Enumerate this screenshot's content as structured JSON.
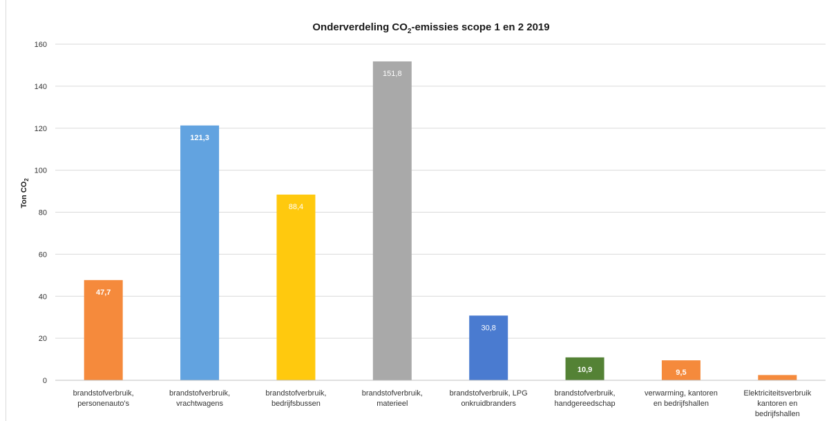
{
  "chart_data": {
    "type": "bar",
    "title": {
      "prefix": "Onderverdeling CO",
      "subscript": "2",
      "suffix": "-emissies scope 1 en 2 2019"
    },
    "ylabel": {
      "prefix": "Ton CO",
      "subscript": "2"
    },
    "xlabel": "",
    "ylim": [
      0,
      160
    ],
    "yticks": [
      "0",
      "20",
      "40",
      "60",
      "80",
      "100",
      "120",
      "140",
      "160"
    ],
    "grid": true,
    "legend": "none",
    "categories": [
      [
        "brandstofverbruik,",
        "personenauto's"
      ],
      [
        "brandstofverbruik,",
        "vrachtwagens"
      ],
      [
        "brandstofverbruik,",
        "bedrijfsbussen"
      ],
      [
        "brandstofverbruik,",
        "materieel"
      ],
      [
        "brandstofverbruik, LPG",
        "onkruidbranders"
      ],
      [
        "brandstofverbruik,",
        "handgereedschap"
      ],
      [
        "verwarming, kantoren",
        "en bedrijfshallen"
      ],
      [
        "Elektriciteitsverbruik",
        "kantoren en",
        "bedrijfshallen"
      ]
    ],
    "values": [
      47.7,
      121.3,
      88.4,
      151.8,
      30.8,
      10.9,
      9.5,
      2.5
    ],
    "data_labels": [
      "47,7",
      "121,3",
      "88,4",
      "151,8",
      "30,8",
      "10,9",
      "9,5",
      ""
    ],
    "colors": [
      "#f58a3c",
      "#62a3e0",
      "#ffc90e",
      "#a9a9a9",
      "#4a7bd0",
      "#548235",
      "#f58a3c",
      "#f58a3c"
    ],
    "label_bold": [
      true,
      true,
      false,
      false,
      false,
      true,
      true,
      false
    ]
  }
}
